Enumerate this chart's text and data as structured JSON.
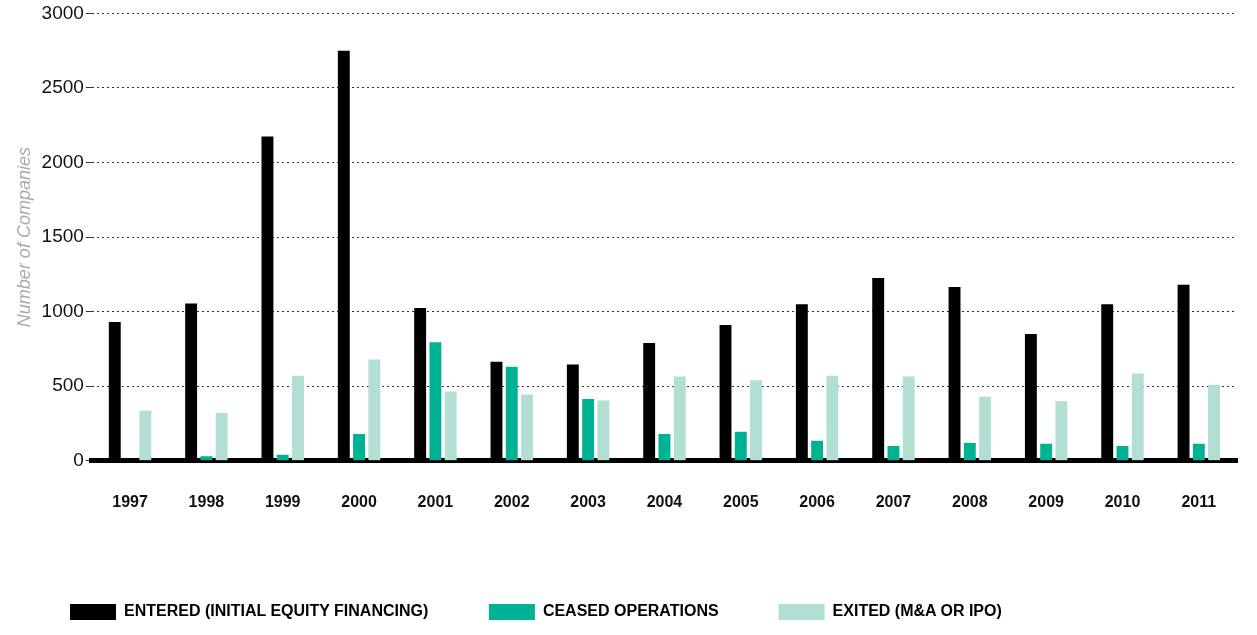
{
  "chart_data": {
    "type": "bar",
    "ylabel": "Number of Companies",
    "categories": [
      "1997",
      "1998",
      "1999",
      "2000",
      "2001",
      "2002",
      "2003",
      "2004",
      "2005",
      "2006",
      "2007",
      "2008",
      "2009",
      "2010",
      "2011"
    ],
    "series": [
      {
        "name": "ENTERED (INITIAL EQUITY FINANCING)",
        "color": "#000000",
        "values": [
          930,
          1055,
          2175,
          2750,
          1025,
          665,
          645,
          790,
          910,
          1050,
          1225,
          1165,
          850,
          1050,
          1180
        ]
      },
      {
        "name": "CEASED OPERATIONS",
        "color": "#00b294",
        "values": [
          null,
          30,
          40,
          180,
          795,
          630,
          415,
          180,
          195,
          135,
          100,
          120,
          115,
          100,
          115
        ]
      },
      {
        "name": "EXITED (M&A OR IPO)",
        "color": "#b2ded3",
        "values": [
          335,
          320,
          570,
          680,
          465,
          445,
          405,
          565,
          540,
          570,
          565,
          430,
          400,
          585,
          510
        ]
      }
    ],
    "ylim": [
      0,
      3000
    ],
    "yticks": [
      0,
      500,
      1000,
      1500,
      2000,
      2500,
      3000
    ],
    "grid": "y",
    "legend": "bottom"
  }
}
